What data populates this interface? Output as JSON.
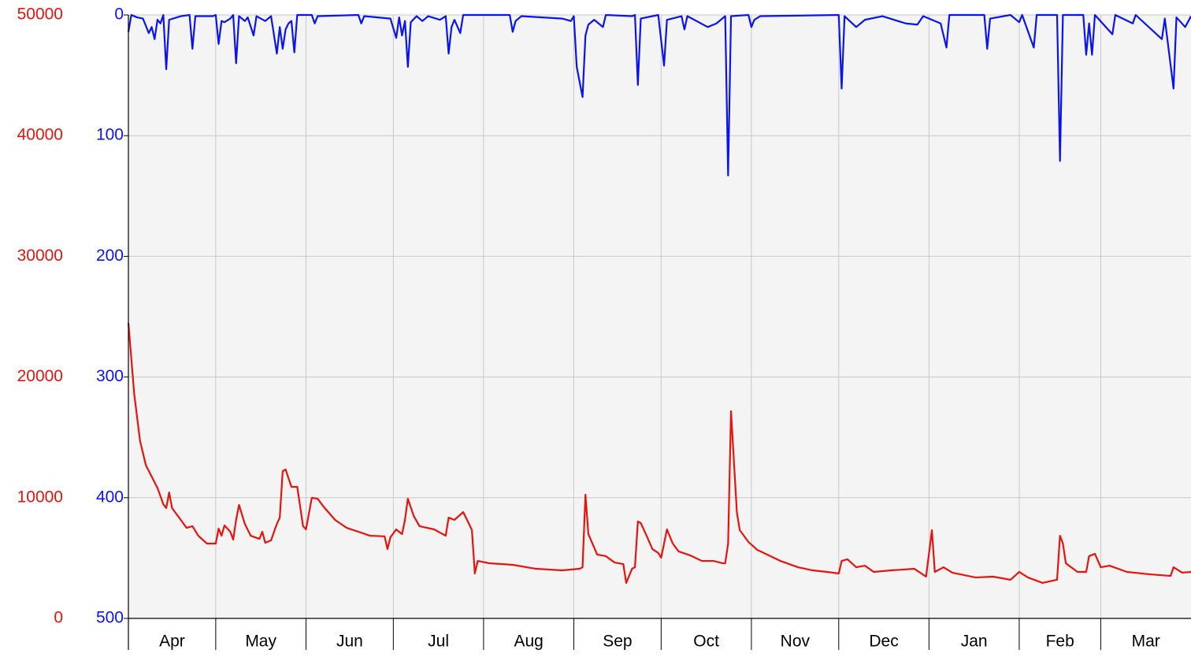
{
  "chart_data": {
    "type": "line",
    "xlim": [
      0,
      365
    ],
    "xticks": [
      {
        "value": 0,
        "label": "Apr"
      },
      {
        "value": 30,
        "label": "May"
      },
      {
        "value": 61,
        "label": "Jun"
      },
      {
        "value": 91,
        "label": "Jul"
      },
      {
        "value": 122,
        "label": "Aug"
      },
      {
        "value": 153,
        "label": "Sep"
      },
      {
        "value": 183,
        "label": "Oct"
      },
      {
        "value": 214,
        "label": "Nov"
      },
      {
        "value": 244,
        "label": "Dec"
      },
      {
        "value": 275,
        "label": "Jan"
      },
      {
        "value": 306,
        "label": "Feb"
      },
      {
        "value": 334,
        "label": "Mar"
      }
    ],
    "ylim": [
      0,
      50000
    ],
    "yticks": [
      0,
      10000,
      20000,
      30000,
      40000,
      50000
    ],
    "y2lim": [
      500,
      0
    ],
    "y2ticks": [
      0,
      100,
      200,
      300,
      400,
      500
    ],
    "ytick_color": "#e8130c",
    "y2tick_color": "#0a14f0",
    "grid": true,
    "series": [
      {
        "color": "#e8130c",
        "axis": "y",
        "x": [
          0,
          2,
          4,
          6,
          8,
          10,
          12,
          13,
          14,
          15,
          18,
          20,
          22,
          24,
          27,
          30,
          31,
          32,
          33,
          35,
          36,
          37,
          38,
          40,
          42,
          45,
          46,
          47,
          49,
          51,
          52,
          53,
          54,
          56,
          58,
          60,
          61,
          63,
          65,
          67,
          71,
          75,
          79,
          83,
          88,
          89,
          90,
          92,
          94,
          95,
          96,
          98,
          100,
          105,
          109,
          110,
          112,
          115,
          117,
          118,
          119,
          120,
          124,
          132,
          140,
          149,
          155,
          156,
          157,
          158,
          160,
          161,
          164,
          167,
          170,
          171,
          173,
          174,
          175,
          176,
          178,
          180,
          182,
          183,
          185,
          187,
          189,
          193,
          197,
          201,
          204,
          205,
          206,
          207,
          209,
          210,
          213,
          216,
          220,
          224,
          230,
          235,
          240,
          244,
          245,
          247,
          250,
          253,
          256,
          262,
          270,
          274,
          276,
          277,
          280,
          283,
          291,
          297,
          303,
          306,
          309,
          314,
          319,
          320,
          321,
          322,
          326,
          329,
          330,
          332,
          334,
          337,
          343,
          351,
          358,
          359,
          362,
          365
        ],
        "values": [
          24480,
          18600,
          14700,
          12700,
          11750,
          10800,
          9460,
          9140,
          10440,
          9140,
          8160,
          7500,
          7640,
          6850,
          6200,
          6200,
          7440,
          6850,
          7700,
          7180,
          6530,
          8160,
          9400,
          7830,
          6850,
          6590,
          7180,
          6270,
          6460,
          7830,
          8350,
          12200,
          12340,
          10900,
          10900,
          7640,
          7375,
          9990,
          9920,
          9270,
          8160,
          7500,
          7180,
          6850,
          6800,
          5740,
          6720,
          7375,
          6980,
          8160,
          9920,
          8490,
          7640,
          7375,
          6850,
          8350,
          8160,
          8810,
          7830,
          7310,
          3720,
          4760,
          4570,
          4440,
          4110,
          3980,
          4110,
          4240,
          10250,
          6980,
          5870,
          5290,
          5160,
          4630,
          4500,
          2940,
          4110,
          4240,
          8030,
          7900,
          6850,
          5740,
          5420,
          5030,
          7375,
          6200,
          5550,
          5220,
          4760,
          4760,
          4570,
          4570,
          6200,
          17170,
          8810,
          7310,
          6330,
          5680,
          5220,
          4760,
          4240,
          3980,
          3850,
          3720,
          4760,
          4900,
          4240,
          4370,
          3850,
          3980,
          4110,
          3460,
          7310,
          3850,
          4240,
          3790,
          3390,
          3460,
          3200,
          3850,
          3390,
          2940,
          3200,
          6850,
          6200,
          4570,
          3850,
          3850,
          5160,
          5350,
          4240,
          4370,
          3850,
          3650,
          3520,
          4240,
          3790,
          3850
        ]
      },
      {
        "color": "#0a14f0",
        "axis": "y2",
        "x": [
          0,
          1,
          3,
          5,
          7,
          8,
          9,
          10,
          11,
          12,
          13,
          14,
          18,
          21,
          22,
          23,
          29,
          30,
          31,
          32,
          33,
          35,
          36,
          37,
          38,
          40,
          41,
          43,
          44,
          47,
          49,
          51,
          52,
          53,
          54,
          55,
          56,
          57,
          58,
          63,
          64,
          65,
          79,
          80,
          81,
          90,
          92,
          93,
          94,
          95,
          96,
          97,
          99,
          101,
          103,
          107,
          109,
          110,
          111,
          112,
          114,
          115,
          131,
          132,
          133,
          135,
          149,
          152,
          153,
          154,
          156,
          157,
          158,
          160,
          163,
          164,
          173,
          174,
          175,
          176,
          182,
          184,
          185,
          190,
          191,
          192,
          199,
          202,
          205,
          206,
          207,
          213,
          214,
          215,
          217,
          244,
          245,
          246,
          250,
          253,
          259,
          267,
          271,
          273,
          279,
          281,
          282,
          294,
          295,
          296,
          303,
          306,
          307,
          311,
          312,
          319,
          320,
          321,
          328,
          329,
          330,
          331,
          332,
          338,
          339,
          345,
          346,
          355,
          356,
          359,
          360,
          363,
          365
        ],
        "values": [
          14,
          0,
          2,
          3,
          15,
          10,
          20,
          4,
          7,
          0,
          45,
          4,
          1,
          0,
          28,
          1,
          1,
          0,
          24,
          5,
          6,
          3,
          0,
          40,
          1,
          5,
          2,
          17,
          1,
          5,
          1,
          32,
          10,
          28,
          12,
          7,
          5,
          31,
          0,
          0,
          7,
          1,
          0,
          7,
          1,
          3,
          19,
          2,
          17,
          5,
          43,
          6,
          1,
          5,
          1,
          4,
          1,
          32,
          10,
          4,
          15,
          0,
          0,
          14,
          5,
          1,
          3,
          5,
          1,
          43,
          68,
          17,
          8,
          4,
          10,
          0,
          1,
          0,
          58,
          3,
          0,
          42,
          4,
          1,
          12,
          1,
          10,
          7,
          1,
          133,
          1,
          0,
          10,
          4,
          1,
          0,
          61,
          1,
          10,
          4,
          1,
          7,
          8,
          1,
          7,
          27,
          0,
          0,
          28,
          3,
          0,
          6,
          0,
          27,
          0,
          0,
          121,
          0,
          0,
          33,
          7,
          33,
          0,
          16,
          0,
          7,
          0,
          20,
          3,
          61,
          2,
          10,
          1
        ]
      }
    ]
  }
}
